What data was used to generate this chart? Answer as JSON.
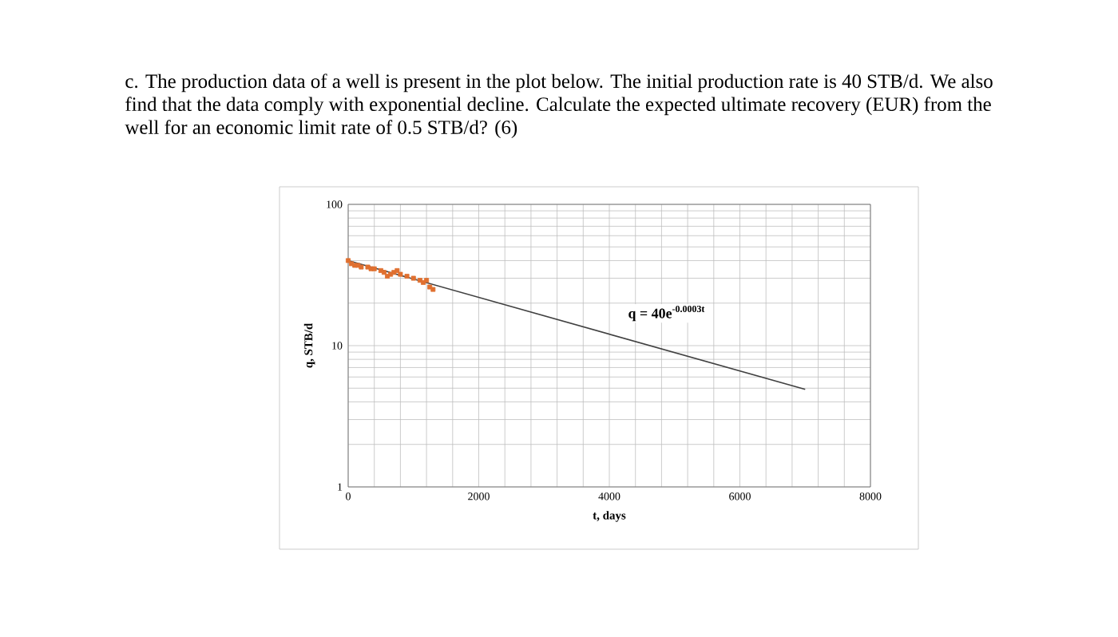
{
  "chart_data": {
    "type": "scatter",
    "title": "c. The production data of a well is present in the plot below. The initial production rate is 40 STB/d. We also find that the data comply with exponential decline. Calculate the expected ultimate recovery (EUR) from the well for an economic limit rate of 0.5 STB/d? (6)",
    "xlabel": "t, days",
    "ylabel": "q, STB/d",
    "annotations": [
      "q = 40e$^{-0.0003t}$"
    ],
    "series": [
      {
        "marker": "square",
        "color": "#e07030",
        "x": [
          0,
          50,
          100,
          150,
          200,
          300,
          350,
          400,
          500,
          550,
          600,
          650,
          700,
          750,
          800,
          900,
          1000,
          1100,
          1150,
          1200,
          1250,
          1300
        ],
        "values": [
          40,
          38,
          37,
          37,
          36,
          36,
          35,
          35,
          34,
          33,
          31,
          32,
          33,
          34,
          32,
          31,
          30,
          29,
          28,
          29,
          26,
          25
        ]
      },
      {
        "type": "line",
        "marker": "none",
        "color": "#404040",
        "x": [
          0,
          7000
        ],
        "values": [
          40,
          4.9
        ]
      }
    ],
    "log": "y",
    "grid": true,
    "xlim": [
      0,
      8000
    ],
    "ylim": [
      1,
      100
    ],
    "xticks": [
      0,
      {
        "value": 400,
        "label": null
      },
      {
        "value": 800,
        "label": null
      },
      {
        "value": 1200,
        "label": null
      },
      {
        "value": 1600,
        "label": null
      },
      2000,
      {
        "value": 2400,
        "label": null
      },
      {
        "value": 2800,
        "label": null
      },
      {
        "value": 3200,
        "label": null
      },
      {
        "value": 3600,
        "label": null
      },
      4000,
      {
        "value": 4400,
        "label": null
      },
      {
        "value": 4800,
        "label": null
      },
      {
        "value": 5200,
        "label": null
      },
      {
        "value": 5600,
        "label": null
      },
      6000,
      {
        "value": 6400,
        "label": null
      },
      {
        "value": 6800,
        "label": null
      },
      {
        "value": 7200,
        "label": null
      },
      {
        "value": 7600,
        "label": null
      },
      8000
    ],
    "yticks": [
      1,
      {
        "value": 2,
        "label": null
      },
      {
        "value": 3,
        "label": null
      },
      {
        "value": 4,
        "label": null
      },
      {
        "value": 5,
        "label": null
      },
      {
        "value": 6,
        "label": null
      },
      {
        "value": 7,
        "label": null
      },
      {
        "value": 8,
        "label": null
      },
      {
        "value": 9,
        "label": null
      },
      10,
      {
        "value": 20,
        "label": null
      },
      {
        "value": 30,
        "label": null
      },
      {
        "value": 40,
        "label": null
      },
      {
        "value": 50,
        "label": null
      },
      {
        "value": 60,
        "label": null
      },
      {
        "value": 70,
        "label": null
      },
      {
        "value": 80,
        "label": null
      },
      {
        "value": 90,
        "label": null
      },
      100
    ]
  }
}
